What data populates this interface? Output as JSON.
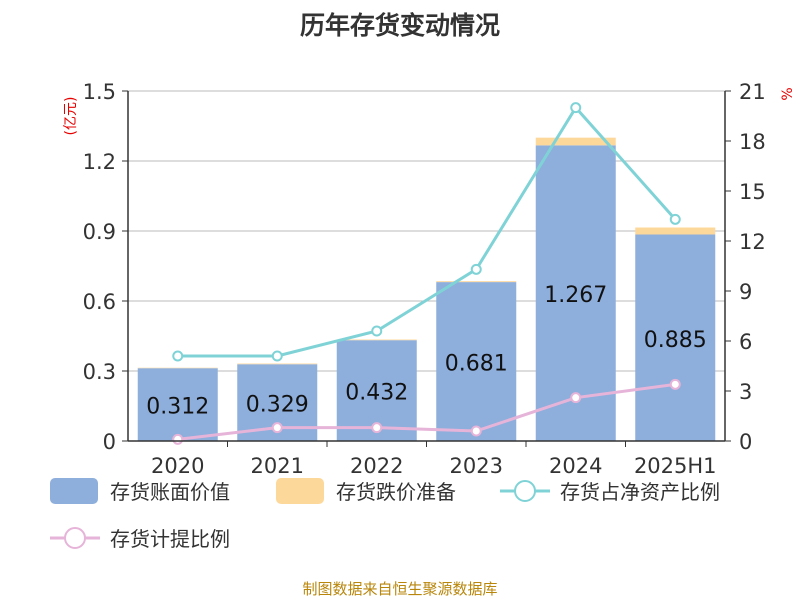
{
  "title": "历年存货变动情况",
  "source": "制图数据来自恒生聚源数据库",
  "colors": {
    "bar_main": "#8eaedc",
    "bar_reserve": "#fdd89b",
    "line_ratio": "#7fd3d6",
    "line_provision": "#e6b4d8",
    "unit_label": "#e60000",
    "axis": "#333333",
    "grid": "#bbbbbb"
  },
  "chart_data": {
    "type": "bar",
    "title": "历年存货变动情况",
    "categories": [
      "2020",
      "2021",
      "2022",
      "2023",
      "2024",
      "2025H1"
    ],
    "y_left": {
      "label": "(亿元)",
      "range": [
        0,
        1.5
      ],
      "ticks": [
        "0",
        "0.3",
        "0.6",
        "0.9",
        "1.2",
        "1.5"
      ]
    },
    "y_right": {
      "label": "%",
      "range": [
        0,
        21
      ],
      "ticks": [
        "0",
        "3",
        "6",
        "9",
        "12",
        "15",
        "18",
        "21"
      ]
    },
    "series": [
      {
        "name": "存货账面价值",
        "type": "bar",
        "axis": "left",
        "stack": true,
        "values": [
          0.312,
          0.329,
          0.432,
          0.681,
          1.267,
          0.885
        ],
        "labels": [
          "0.312",
          "0.329",
          "0.432",
          "0.681",
          "1.267",
          "0.885"
        ]
      },
      {
        "name": "存货跌价准备",
        "type": "bar",
        "axis": "left",
        "stack": true,
        "values": [
          0.002,
          0.003,
          0.003,
          0.004,
          0.033,
          0.03
        ]
      },
      {
        "name": "存货占净资产比例",
        "type": "line",
        "axis": "right",
        "values": [
          5.1,
          5.1,
          6.6,
          10.3,
          20.0,
          13.3
        ]
      },
      {
        "name": "存货计提比例",
        "type": "line",
        "axis": "right",
        "values": [
          0.1,
          0.8,
          0.8,
          0.6,
          2.6,
          3.4
        ]
      }
    ],
    "grid": true,
    "legend_position": "bottom"
  }
}
